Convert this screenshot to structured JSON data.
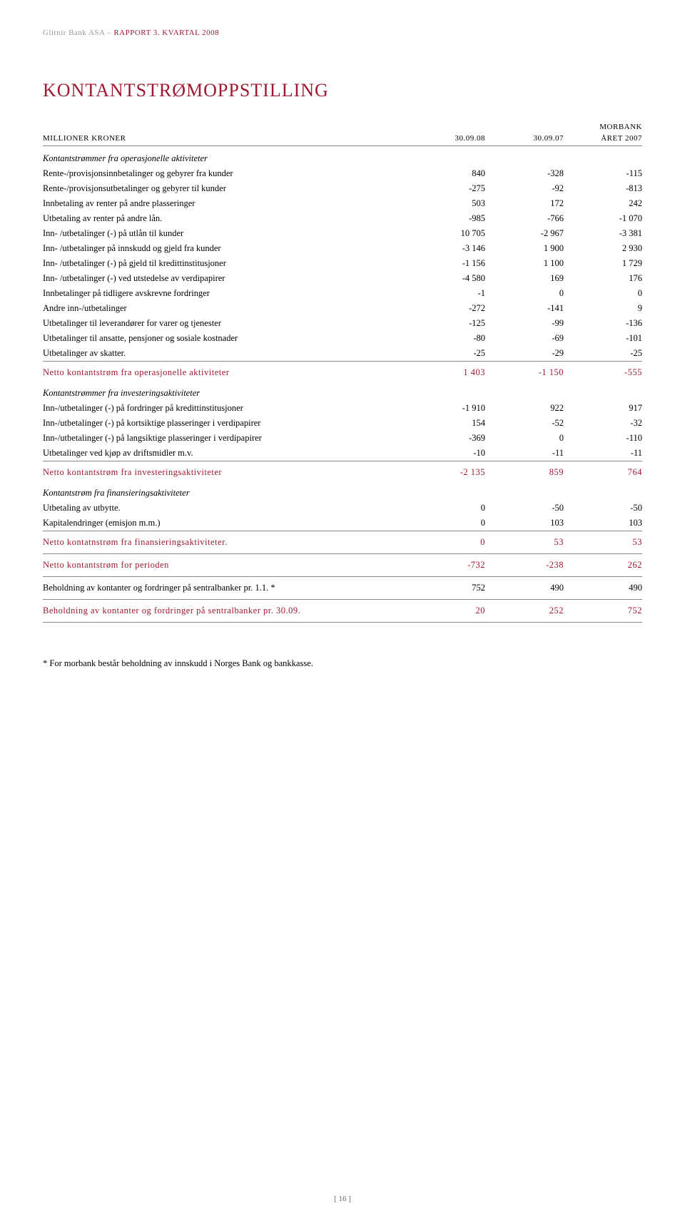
{
  "header": {
    "company": "Glitnir Bank ASA",
    "separator": " – ",
    "report": "RAPPORT 3. KVARTAL 2008"
  },
  "title": "KONTANTSTRØMOPPSTILLING",
  "table_header": {
    "morbank": "MORBANK",
    "col0": "MILLIONER KRONER",
    "col1": "30.09.08",
    "col2": "30.09.07",
    "col3": "ÅRET 2007"
  },
  "sections": [
    {
      "title": "Kontantstrømmer fra operasjonelle aktiviteter",
      "rows": [
        {
          "label": "Rente-/provisjonsinnbetalinger og gebyrer fra kunder",
          "v1": "840",
          "v2": "-328",
          "v3": "-115"
        },
        {
          "label": "Rente-/provisjonsutbetalinger og gebyrer til kunder",
          "v1": "-275",
          "v2": "-92",
          "v3": "-813"
        },
        {
          "label": "Innbetaling av renter på andre plasseringer",
          "v1": "503",
          "v2": "172",
          "v3": "242"
        },
        {
          "label": "Utbetaling av renter på andre lån.",
          "v1": "-985",
          "v2": "-766",
          "v3": "-1 070"
        },
        {
          "label": "Inn- /utbetalinger (-) på utlån til kunder",
          "v1": "10 705",
          "v2": "-2 967",
          "v3": "-3 381"
        },
        {
          "label": "Inn- /utbetalinger på innskudd og gjeld fra kunder",
          "v1": "-3 146",
          "v2": "1 900",
          "v3": "2 930"
        },
        {
          "label": "Inn- /utbetalinger (-) på gjeld til kredittinstitusjoner",
          "v1": "-1 156",
          "v2": "1 100",
          "v3": "1 729"
        },
        {
          "label": "Inn- /utbetalinger (-) ved utstedelse av verdipapirer",
          "v1": "-4 580",
          "v2": "169",
          "v3": "176"
        },
        {
          "label": "Innbetalinger på tidligere avskrevne fordringer",
          "v1": "-1",
          "v2": "0",
          "v3": "0"
        },
        {
          "label": "Andre inn-/utbetalinger",
          "v1": "-272",
          "v2": "-141",
          "v3": "9"
        },
        {
          "label": "Utbetalinger til leverandører for varer og tjenester",
          "v1": "-125",
          "v2": "-99",
          "v3": "-136"
        },
        {
          "label": "Utbetalinger til ansatte, pensjoner og sosiale kostnader",
          "v1": "-80",
          "v2": "-69",
          "v3": "-101"
        },
        {
          "label": "Utbetalinger av skatter.",
          "v1": "-25",
          "v2": "-29",
          "v3": "-25"
        }
      ],
      "total": {
        "label": "Netto kontantstrøm fra operasjonelle aktiviteter",
        "v1": "1 403",
        "v2": "-1 150",
        "v3": "-555"
      }
    },
    {
      "title": "Kontantstrømmer fra investeringsaktiviteter",
      "rows": [
        {
          "label": "Inn-/utbetalinger (-) på fordringer på kredittinstitusjoner",
          "v1": "-1 910",
          "v2": "922",
          "v3": "917"
        },
        {
          "label": "Inn-/utbetalinger (-) på kortsiktige plasseringer i verdipapirer",
          "v1": "154",
          "v2": "-52",
          "v3": "-32"
        },
        {
          "label": "Inn-/utbetalinger (-) på langsiktige plasseringer i verdipapirer",
          "v1": "-369",
          "v2": "0",
          "v3": "-110"
        },
        {
          "label": "Utbetalinger ved kjøp av driftsmidler m.v.",
          "v1": "-10",
          "v2": "-11",
          "v3": "-11"
        }
      ],
      "total": {
        "label": "Netto kontantstrøm fra investeringsaktiviteter",
        "v1": "-2 135",
        "v2": "859",
        "v3": "764"
      }
    },
    {
      "title": "Kontantstrøm fra finansieringsaktiviteter",
      "rows": [
        {
          "label": "Utbetaling av utbytte.",
          "v1": "0",
          "v2": "-50",
          "v3": "-50"
        },
        {
          "label": "Kapitalendringer (emisjon m.m.)",
          "v1": "0",
          "v2": "103",
          "v3": "103"
        }
      ],
      "total": {
        "label": "Netto kontatnstrøm fra finansieringsaktiviteter.",
        "v1": "0",
        "v2": "53",
        "v3": "53"
      }
    }
  ],
  "summary_rows": [
    {
      "label": "Netto kontantstrøm for perioden",
      "v1": "-732",
      "v2": "-238",
      "v3": "262"
    },
    {
      "label": "Beholdning av kontanter og fordringer på sentralbanker pr. 1.1. *",
      "v1": "752",
      "v2": "490",
      "v3": "490",
      "plain": true
    },
    {
      "label": "Beholdning av kontanter og fordringer på sentralbanker pr. 30.09.",
      "v1": "20",
      "v2": "252",
      "v3": "752"
    }
  ],
  "footnote": "* For morbank består beholdning av innskudd i Norges Bank og bankkasse.",
  "page_num": "[ 16 ]",
  "colors": {
    "accent": "#a01830",
    "text": "#000000",
    "grey": "#9a9a9a",
    "border": "#888888"
  }
}
